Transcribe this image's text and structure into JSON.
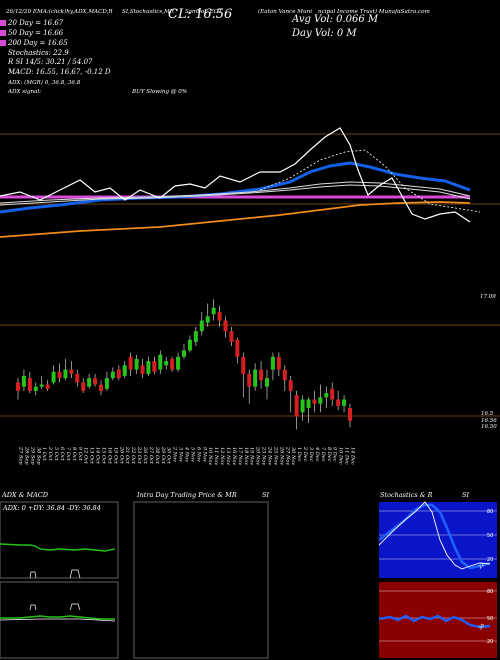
{
  "header": {
    "l1a": "26/12/20 EMA:(click)hy,ADX,MACD,R",
    "l1b": "SI,Stochastics,MR",
    "l1c": "(Eaton Vance Muni",
    "l1d": "ncipal Income Trust) MunafaSutra.com",
    "symbol_label": "Symbol: EOT",
    "close_text": "CL: 16.56",
    "avg_vol": "Avg Vol: 0.066   M",
    "day_vol": "Day Vol: 0   M",
    "ema_lines": [
      "20  Day = 16.67",
      "50  Day = 16.66",
      "200  Day = 16.65"
    ],
    "stoch_text": "Stochastics: 22.9",
    "rsi_text": "R                    SI 14/5: 30.21 / 54.07",
    "macd_text": "MACD: 16.55,  16.67, -0.12  D",
    "adx_text": "ADX:                      (MGR) 0,  36.8,  36.8",
    "adx_signal": "ADX  signal:",
    "buy_text": "BUY Slowing @ 0%"
  },
  "price_axis": {
    "top_label": "17.09",
    "mid_label1": "16.5",
    "mid_label2": "16.56",
    "mid_label3": "16.50"
  },
  "panels": {
    "adx_title": "ADX  & MACD",
    "adx_values": "ADX: 0   +DY: 36.84   -DY: 36.84",
    "intraday_title": "Intra  Day Trading Price  & MR",
    "intraday_si": "SI",
    "stoch_title": "Stochastics & R",
    "stoch_si": "SI",
    "stoch_ticks": [
      "80",
      "50",
      "20"
    ],
    "rsi_ticks": [
      "80",
      "50",
      "20"
    ],
    "stoch_current": "22",
    "rsi_current": "30"
  },
  "colors": {
    "ema_blue": "#1560e8",
    "ema_orange": "#f08a1c",
    "pink": "#d94ad8",
    "up": "#27c318",
    "down": "#d42020",
    "grid": "#9a6a2a"
  },
  "chart_data": {
    "type": "candlestick",
    "dates": [
      "27 Sep",
      "28 Sep",
      "29 Sep",
      "30 Sep",
      "1 Oct",
      "2 Oct",
      "5 Oct",
      "6 Oct",
      "7 Oct",
      "8 Oct",
      "9 Oct",
      "12 Oct",
      "13 Oct",
      "14 Oct",
      "15 Oct",
      "16 Oct",
      "19 Oct",
      "20 Oct",
      "21 Oct",
      "22 Oct",
      "23 Oct",
      "26 Oct",
      "27 Oct",
      "28 Oct",
      "29 Oct",
      "30 Oct",
      "2 Nov",
      "3 Nov",
      "4 Nov",
      "5 Nov",
      "6 Nov",
      "9 Nov",
      "10 Nov",
      "11 Nov",
      "12 Nov",
      "13 Nov",
      "16 Nov",
      "17 Nov",
      "18 Nov",
      "19 Nov",
      "20 Nov",
      "23 Nov",
      "24 Nov",
      "25 Nov",
      "26 Nov",
      "27 Nov",
      "30 Nov",
      "1 Dec",
      "2 Dec",
      "3 Dec",
      "4 Dec",
      "7 Dec",
      "8 Dec",
      "9 Dec",
      "10 Dec",
      "11 Dec",
      "14 Dec"
    ],
    "candles": [
      {
        "o": 16.74,
        "c": 16.7,
        "h": 16.76,
        "l": 16.66
      },
      {
        "o": 16.72,
        "c": 16.77,
        "h": 16.8,
        "l": 16.7
      },
      {
        "o": 16.76,
        "c": 16.7,
        "h": 16.79,
        "l": 16.69
      },
      {
        "o": 16.7,
        "c": 16.72,
        "h": 16.74,
        "l": 16.68
      },
      {
        "o": 16.72,
        "c": 16.73,
        "h": 16.77,
        "l": 16.71
      },
      {
        "o": 16.73,
        "c": 16.71,
        "h": 16.75,
        "l": 16.7
      },
      {
        "o": 16.74,
        "c": 16.79,
        "h": 16.82,
        "l": 16.73
      },
      {
        "o": 16.79,
        "c": 16.76,
        "h": 16.83,
        "l": 16.74
      },
      {
        "o": 16.76,
        "c": 16.8,
        "h": 16.85,
        "l": 16.75
      },
      {
        "o": 16.8,
        "c": 16.78,
        "h": 16.84,
        "l": 16.76
      },
      {
        "o": 16.78,
        "c": 16.74,
        "h": 16.8,
        "l": 16.72
      },
      {
        "o": 16.74,
        "c": 16.7,
        "h": 16.76,
        "l": 16.69
      },
      {
        "o": 16.72,
        "c": 16.76,
        "h": 16.78,
        "l": 16.71
      },
      {
        "o": 16.76,
        "c": 16.73,
        "h": 16.78,
        "l": 16.72
      },
      {
        "o": 16.73,
        "c": 16.7,
        "h": 16.75,
        "l": 16.68
      },
      {
        "o": 16.71,
        "c": 16.76,
        "h": 16.79,
        "l": 16.7
      },
      {
        "o": 16.76,
        "c": 16.79,
        "h": 16.81,
        "l": 16.75
      },
      {
        "o": 16.8,
        "c": 16.76,
        "h": 16.82,
        "l": 16.75
      },
      {
        "o": 16.77,
        "c": 16.82,
        "h": 16.84,
        "l": 16.76
      },
      {
        "o": 16.86,
        "c": 16.8,
        "h": 16.88,
        "l": 16.77
      },
      {
        "o": 16.8,
        "c": 16.85,
        "h": 16.87,
        "l": 16.78
      },
      {
        "o": 16.82,
        "c": 16.78,
        "h": 16.85,
        "l": 16.76
      },
      {
        "o": 16.78,
        "c": 16.84,
        "h": 16.86,
        "l": 16.77
      },
      {
        "o": 16.84,
        "c": 16.79,
        "h": 16.86,
        "l": 16.78
      },
      {
        "o": 16.8,
        "c": 16.87,
        "h": 16.89,
        "l": 16.78
      },
      {
        "o": 16.82,
        "c": 16.84,
        "h": 16.86,
        "l": 16.8
      },
      {
        "o": 16.85,
        "c": 16.8,
        "h": 16.86,
        "l": 16.79
      },
      {
        "o": 16.8,
        "c": 16.86,
        "h": 16.88,
        "l": 16.79
      },
      {
        "o": 16.86,
        "c": 16.89,
        "h": 16.92,
        "l": 16.85
      },
      {
        "o": 16.89,
        "c": 16.94,
        "h": 16.96,
        "l": 16.88
      },
      {
        "o": 16.93,
        "c": 16.98,
        "h": 17.0,
        "l": 16.91
      },
      {
        "o": 16.98,
        "c": 17.03,
        "h": 17.07,
        "l": 16.96
      },
      {
        "o": 17.02,
        "c": 17.05,
        "h": 17.11,
        "l": 17.0
      },
      {
        "o": 17.06,
        "c": 17.09,
        "h": 17.13,
        "l": 17.03
      },
      {
        "o": 17.07,
        "c": 17.03,
        "h": 17.1,
        "l": 17.0
      },
      {
        "o": 17.03,
        "c": 16.98,
        "h": 17.05,
        "l": 16.95
      },
      {
        "o": 16.98,
        "c": 16.93,
        "h": 17.0,
        "l": 16.91
      },
      {
        "o": 16.94,
        "c": 16.86,
        "h": 16.95,
        "l": 16.83
      },
      {
        "o": 16.86,
        "c": 16.78,
        "h": 16.88,
        "l": 16.67
      },
      {
        "o": 16.78,
        "c": 16.72,
        "h": 16.8,
        "l": 16.64
      },
      {
        "o": 16.72,
        "c": 16.8,
        "h": 16.83,
        "l": 16.7
      },
      {
        "o": 16.8,
        "c": 16.75,
        "h": 16.84,
        "l": 16.71
      },
      {
        "o": 16.72,
        "c": 16.76,
        "h": 16.8,
        "l": 16.66
      },
      {
        "o": 16.8,
        "c": 16.86,
        "h": 16.88,
        "l": 16.75
      },
      {
        "o": 16.86,
        "c": 16.8,
        "h": 16.88,
        "l": 16.77
      },
      {
        "o": 16.8,
        "c": 16.75,
        "h": 16.82,
        "l": 16.7
      },
      {
        "o": 16.75,
        "c": 16.7,
        "h": 16.77,
        "l": 16.6
      },
      {
        "o": 16.68,
        "c": 16.58,
        "h": 16.7,
        "l": 16.52
      },
      {
        "o": 16.6,
        "c": 16.66,
        "h": 16.68,
        "l": 16.56
      },
      {
        "o": 16.62,
        "c": 16.66,
        "h": 16.67,
        "l": 16.55
      },
      {
        "o": 16.66,
        "c": 16.64,
        "h": 16.7,
        "l": 16.6
      },
      {
        "o": 16.64,
        "c": 16.67,
        "h": 16.73,
        "l": 16.6
      },
      {
        "o": 16.67,
        "c": 16.69,
        "h": 16.72,
        "l": 16.62
      },
      {
        "o": 16.71,
        "c": 16.66,
        "h": 16.74,
        "l": 16.63
      },
      {
        "o": 16.66,
        "c": 16.63,
        "h": 16.7,
        "l": 16.61
      },
      {
        "o": 16.63,
        "c": 16.66,
        "h": 16.68,
        "l": 16.6
      },
      {
        "o": 16.62,
        "c": 16.56,
        "h": 16.64,
        "l": 16.53
      }
    ],
    "ylim": [
      16.47,
      17.22
    ]
  }
}
